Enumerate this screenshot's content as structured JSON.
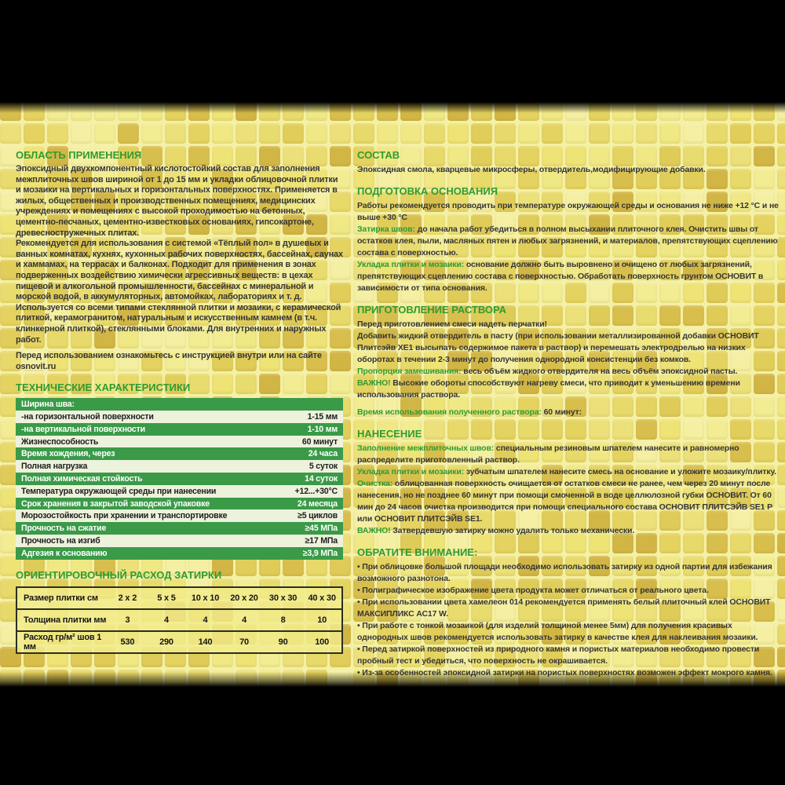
{
  "colors": {
    "heading_green": "#2e9b33",
    "table_green": "#3a9a48",
    "table_light": "#edf2dc",
    "table_border": "#2a2f23",
    "consumption_bg": "rgba(243,236,140,0.8)",
    "text": "#363636",
    "gap_color": "#f4f0a4",
    "letterbox": "#000000"
  },
  "mosaic": {
    "tile_colors": [
      "#f2ec92",
      "#efe884",
      "#ece07a",
      "#e9dc6e",
      "#e4d360",
      "#decb58",
      "#d8bf4d",
      "#d2b645",
      "#f4efa2",
      "#e7d96a",
      "#eee375",
      "#e1ce5a"
    ]
  },
  "columns": [
    {
      "id": "left",
      "items": [
        {
          "kind": "section",
          "id": "application-area",
          "heading": "ОБЛАСТЬ ПРИМЕНЕНИЯ",
          "blocks": [
            {
              "text": "Эпоксидный двухкомпонентный кислотостойкий состав для заполнения межплиточных швов шириной от 1 до 15 мм и укладки облицовочной плитки и мозаики на вертикальных и горизонтальных поверхностях. Применяется в жилых, общественных и производственных помещениях, медицинских учреждениях и помещениях с высокой проходимостью на бетонных, цементно-песчаных, цементно-известковых основаниях, гипсокартоне, древесностружечных плитах."
            },
            {
              "text": "Рекомендуется для использования с системой «Тёплый пол» в душевых и ванных комнатах, кухнях, кухонных рабочих поверхностях, бассейнах, саунах и хаммамах, на террасах и балконах. Подходит для применения в зонах подверженных воздействию химически агрессивных веществ: в цехах пищевой и алкогольной промышленности, бассейнах с минеральной и морской водой, в аккумуляторных, автомойках, лабораториях и т. д."
            },
            {
              "text": "Используется со всеми типами стеклянной плитки и мозаики, с керамической плиткой, керамогранитом, натуральным и искусственным камнем (в т.ч. клинкерной плиткой), стеклянными блоками. Для внутренних и наружных работ."
            },
            {
              "text": "Перед использованием ознакомьтесь с инструкцией внутри или на сайте osnovit.ru",
              "gap": true
            }
          ]
        },
        {
          "kind": "section",
          "id": "technical-characteristics",
          "heading": "ТЕХНИЧЕСКИЕ ХАРАКТЕРИСТИКИ",
          "blocks": []
        },
        {
          "kind": "tech-table",
          "rows": [
            {
              "label": "Ширина шва:",
              "value": "",
              "style": "green"
            },
            {
              "label": "-на горизонтальной поверхности",
              "value": "1-15 мм",
              "style": "light"
            },
            {
              "label": "-на вертикальной поверхности",
              "value": "1-10 мм",
              "style": "green"
            },
            {
              "label": "Жизнеспособность",
              "value": "60 минут",
              "style": "light"
            },
            {
              "label": "Время хождения, через",
              "value": "24 часа",
              "style": "green"
            },
            {
              "label": "Полная нагрузка",
              "value": "5 суток",
              "style": "light"
            },
            {
              "label": "Полная химическая стойкость",
              "value": "14 суток",
              "style": "green"
            },
            {
              "label": "Температура окружающей среды при нанесении",
              "value": "+12...+30°С",
              "style": "light"
            },
            {
              "label": "Срок хранения в закрытой заводской упаковке",
              "value": "24 месяца",
              "style": "green"
            },
            {
              "label": "Морозостойкость при хранении и транспортировке",
              "value": "≥5 циклов",
              "style": "light"
            },
            {
              "label": "Прочность на сжатие",
              "value": "≥45 МПа",
              "style": "green"
            },
            {
              "label": "Прочность на изгиб",
              "value": "≥17 МПа",
              "style": "light"
            },
            {
              "label": "Адгезия к основанию",
              "value": "≥3,9 МПа",
              "style": "green"
            }
          ]
        },
        {
          "kind": "section",
          "id": "consumption",
          "heading": "ОРИЕНТИРОВОЧНЫЙ РАСХОД ЗАТИРКИ",
          "blocks": []
        },
        {
          "kind": "consumption-table",
          "rows": [
            [
              "Размер плитки см",
              "2 x 2",
              "5 x 5",
              "10 x 10",
              "20 x 20",
              "30 x 30",
              "40 x 30"
            ],
            [
              "Толщина плитки мм",
              "3",
              "4",
              "4",
              "4",
              "8",
              "10"
            ],
            [
              "Расход гр/м² шов 1 мм",
              "530",
              "290",
              "140",
              "70",
              "90",
              "100"
            ]
          ]
        }
      ]
    },
    {
      "id": "right",
      "items": [
        {
          "kind": "section",
          "id": "composition",
          "heading": "СОСТАВ",
          "blocks": [
            {
              "text": "Эпоксидная смола, кварцевые микросферы, отвердитель,модифицирующие добавки."
            }
          ]
        },
        {
          "kind": "section",
          "id": "base-preparation",
          "heading": "ПОДГОТОВКА ОСНОВАНИЯ",
          "blocks": [
            {
              "text": "Работы рекомендуется проводить при температуре окружающей среды и основания не ниже +12 °C и не выше +30 °C"
            },
            {
              "lead": "Затирка швов:",
              "text": " до начала работ убедиться в полном высыхании плиточного клея. Очистить швы от остатков клея, пыли, масляных пятен и любых загрязнений, и материалов, препятствующих сцеплению состава с поверхностью."
            },
            {
              "lead": "Укладка плитки и мозаики:",
              "text": " основание должно быть выровнено и очищено от любых загрязнений, препятствующих сцеплению состава с поверхностью. Обработать поверхность грунтом ОСНОВИТ в зависимости от типа основания."
            }
          ]
        },
        {
          "kind": "section",
          "id": "mortar-preparation",
          "heading": "ПРИГОТОВЛЕНИЕ РАСТВОРА",
          "blocks": [
            {
              "text": "Перед приготовлением смеси надеть перчатки!"
            },
            {
              "text": "Добавить жидкий отвердитель в пасту (при использовании металлизированной добавки ОСНОВИТ Плитсэйв ХЕ1 высыпать содержимое пакета в раствор) и перемешать электродрелью на низких оборотах в течении 2-3 минут до получения однородной консистенции без комков."
            },
            {
              "lead": "Пропорция замешивания:",
              "text": " весь объём жидкого отвердителя на весь объём эпоксидной пасты."
            },
            {
              "lead": "ВАЖНО!",
              "text": " Высокие обороты способствуют нагреву смеси, что приводит к уменьшению времени использования раствора."
            },
            {
              "lead": "Время использования полученного раствора:",
              "text": " 60 минут:",
              "gap": true
            }
          ]
        },
        {
          "kind": "section",
          "id": "application",
          "heading": "НАНЕСЕНИЕ",
          "blocks": [
            {
              "lead": "Заполнение межплиточных швов:",
              "text": " специальным резиновым шпателем нанесите и равномерно распределите приготовленный раствор."
            },
            {
              "lead": "Укладка плитки и мозаики:",
              "text": " зубчатым шпателем нанесите смесь на основание и уложите мозаику/плитку."
            },
            {
              "lead": "Очистка:",
              "text": " облицованная поверхность очищается от остатков смеси не ранее, чем через 20 минут после нанесения, но не позднее 60 минут при помощи смоченной в воде целлюлозной губки ОСНОВИТ. От 60 мин до 24 часов очистка производится при помощи специального состава ОСНОВИТ ПЛИТСЭЙВ SE1 Р или ОСНОВИТ ПЛИТСЭЙВ SE1."
            },
            {
              "lead": "ВАЖНО!",
              "text": " Затвердевшую затирку можно удалить только механически."
            }
          ]
        },
        {
          "kind": "section",
          "id": "attention",
          "heading": "ОБРАТИТЕ ВНИМАНИЕ:",
          "blocks": [
            {
              "text": "• При облицовке большой площади необходимо использовать затирку из одной партии для избежания возможного разнотона."
            },
            {
              "text": "• Полиграфическое изображение цвета продукта может отличаться от реального цвета."
            },
            {
              "text": "• При использовании цвета хамелеон 014 рекомендуется применять белый плиточный клей ОСНОВИТ МАКСИПЛИКС АС17 W."
            },
            {
              "text": "• При работе с тонкой мозаикой (для изделий толщиной менее 5мм) для получения красивых однородных швов рекомендуется использовать затирку в качестве клея для наклеивания мозаики."
            },
            {
              "text": "• Перед затиркой поверхностей из природного камня и пористых материалов необходимо провести пробный тест и убедиться, что поверхность не окрашивается."
            },
            {
              "text": "• Из-за особенностей эпоксидной затирки на пористых поверхностях возможен эффект мокрого камня."
            }
          ]
        }
      ]
    }
  ]
}
